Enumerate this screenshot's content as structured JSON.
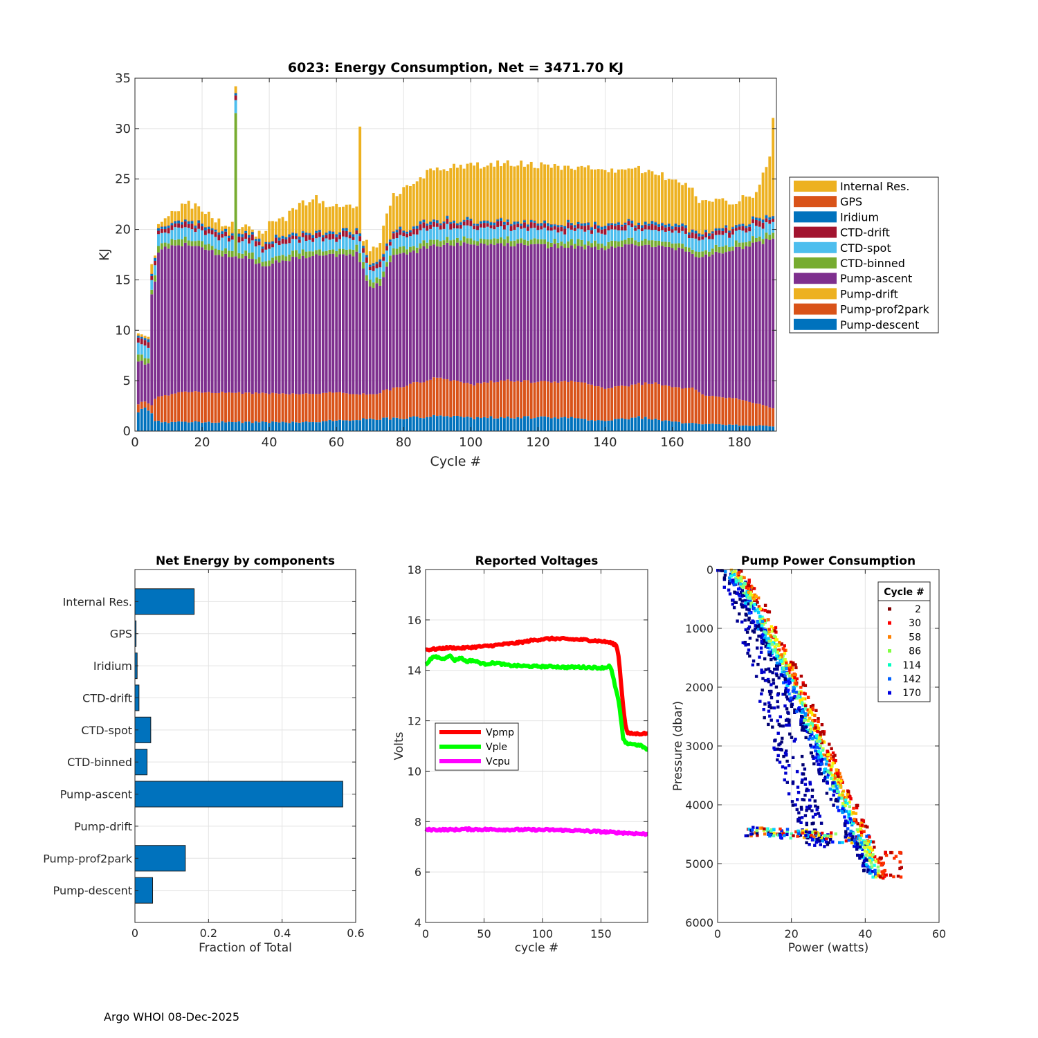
{
  "footer": "Argo WHOI 08-Dec-2025",
  "chart_data": [
    {
      "id": "energy",
      "type": "bar",
      "stacked": true,
      "title": "6023: Energy Consumption,  Net = 3471.70 KJ",
      "xlabel": "Cycle #",
      "ylabel": "KJ",
      "xlim": [
        0,
        191
      ],
      "ylim": [
        0,
        35
      ],
      "xticks": [
        0,
        20,
        40,
        60,
        80,
        100,
        120,
        140,
        160,
        180
      ],
      "yticks": [
        0,
        5,
        10,
        15,
        20,
        25,
        30,
        35
      ],
      "grid": true,
      "legend_position": "outside-right",
      "cycles": 190,
      "components": [
        {
          "name": "Pump-descent",
          "color": "#0072BD"
        },
        {
          "name": "Pump-prof2park",
          "color": "#D95319"
        },
        {
          "name": "Pump-drift",
          "color": "#EDB120"
        },
        {
          "name": "Pump-ascent",
          "color": "#7E2F8E"
        },
        {
          "name": "CTD-binned",
          "color": "#77AC30"
        },
        {
          "name": "CTD-spot",
          "color": "#4DBEEE"
        },
        {
          "name": "CTD-drift",
          "color": "#A2142F"
        },
        {
          "name": "Iridium",
          "color": "#0072BD"
        },
        {
          "name": "GPS",
          "color": "#D95319"
        },
        {
          "name": "Internal Res.",
          "color": "#EDB120"
        }
      ],
      "legend_order": [
        "Internal Res.",
        "GPS",
        "Iridium",
        "CTD-drift",
        "CTD-spot",
        "CTD-binned",
        "Pump-ascent",
        "Pump-drift",
        "Pump-prof2park",
        "Pump-descent"
      ],
      "total_anchors": [
        [
          1,
          9.0
        ],
        [
          2,
          9.2
        ],
        [
          3,
          8.8
        ],
        [
          4,
          8.5
        ],
        [
          5,
          16.3
        ],
        [
          6,
          16.8
        ],
        [
          7,
          20.5
        ],
        [
          10,
          21.5
        ],
        [
          13,
          22.2
        ],
        [
          16,
          22.6
        ],
        [
          20,
          22.0
        ],
        [
          24,
          21.0
        ],
        [
          26,
          20.5
        ],
        [
          29,
          20.6
        ],
        [
          31,
          20.4
        ],
        [
          34,
          20.2
        ],
        [
          36,
          19.5
        ],
        [
          38,
          19.8
        ],
        [
          40,
          20.6
        ],
        [
          45,
          21.2
        ],
        [
          50,
          22.5
        ],
        [
          53,
          23.3
        ],
        [
          56,
          22.6
        ],
        [
          60,
          22.4
        ],
        [
          63,
          22.2
        ],
        [
          66,
          22.5
        ],
        [
          68,
          19.0
        ],
        [
          70,
          18.2
        ],
        [
          73,
          18.8
        ],
        [
          75,
          21.5
        ],
        [
          77,
          23.5
        ],
        [
          80,
          23.8
        ],
        [
          85,
          25.2
        ],
        [
          90,
          26.0
        ],
        [
          95,
          26.2
        ],
        [
          100,
          26.3
        ],
        [
          105,
          26.5
        ],
        [
          110,
          26.7
        ],
        [
          115,
          26.5
        ],
        [
          120,
          26.3
        ],
        [
          125,
          26.4
        ],
        [
          130,
          25.8
        ],
        [
          135,
          26.0
        ],
        [
          140,
          25.8
        ],
        [
          145,
          25.9
        ],
        [
          150,
          26.0
        ],
        [
          155,
          25.6
        ],
        [
          160,
          25.0
        ],
        [
          165,
          24.5
        ],
        [
          168,
          23.0
        ],
        [
          170,
          22.8
        ],
        [
          175,
          22.8
        ],
        [
          180,
          22.9
        ],
        [
          184,
          23.5
        ],
        [
          186,
          24.5
        ],
        [
          188,
          26.0
        ],
        [
          189,
          27.5
        ],
        [
          190,
          31.2
        ]
      ],
      "ascent_top_anchors": [
        [
          1,
          7.0
        ],
        [
          4,
          6.6
        ],
        [
          5,
          13.6
        ],
        [
          6,
          14.6
        ],
        [
          7,
          17.8
        ],
        [
          10,
          18.2
        ],
        [
          15,
          18.5
        ],
        [
          20,
          18.2
        ],
        [
          25,
          17.5
        ],
        [
          30,
          17.3
        ],
        [
          35,
          17.0
        ],
        [
          38,
          16.2
        ],
        [
          42,
          16.8
        ],
        [
          48,
          17.2
        ],
        [
          55,
          17.6
        ],
        [
          60,
          17.3
        ],
        [
          66,
          17.6
        ],
        [
          68,
          16.0
        ],
        [
          70,
          14.3
        ],
        [
          73,
          14.6
        ],
        [
          75,
          16.4
        ],
        [
          77,
          17.3
        ],
        [
          80,
          17.5
        ],
        [
          90,
          18.5
        ],
        [
          100,
          18.5
        ],
        [
          110,
          18.6
        ],
        [
          120,
          18.4
        ],
        [
          130,
          18.3
        ],
        [
          140,
          18.2
        ],
        [
          150,
          18.4
        ],
        [
          160,
          18.2
        ],
        [
          165,
          18.0
        ],
        [
          168,
          17.3
        ],
        [
          170,
          17.5
        ],
        [
          180,
          18.2
        ],
        [
          190,
          19.0
        ]
      ],
      "descent_anchors": [
        [
          1,
          1.8
        ],
        [
          3,
          2.3
        ],
        [
          5,
          1.8
        ],
        [
          6,
          1.0
        ],
        [
          10,
          0.9
        ],
        [
          30,
          0.9
        ],
        [
          50,
          0.9
        ],
        [
          70,
          1.2
        ],
        [
          80,
          1.3
        ],
        [
          90,
          1.5
        ],
        [
          100,
          1.3
        ],
        [
          110,
          1.4
        ],
        [
          130,
          1.3
        ],
        [
          140,
          1.0
        ],
        [
          150,
          1.4
        ],
        [
          160,
          0.9
        ],
        [
          170,
          0.7
        ],
        [
          180,
          0.6
        ],
        [
          190,
          0.5
        ]
      ],
      "prof2park_anchors": [
        [
          1,
          0.8
        ],
        [
          3,
          0.6
        ],
        [
          5,
          0.8
        ],
        [
          6,
          2.2
        ],
        [
          8,
          2.6
        ],
        [
          15,
          3.0
        ],
        [
          30,
          2.9
        ],
        [
          50,
          2.8
        ],
        [
          60,
          2.8
        ],
        [
          70,
          2.4
        ],
        [
          75,
          2.8
        ],
        [
          80,
          3.2
        ],
        [
          90,
          3.8
        ],
        [
          100,
          3.3
        ],
        [
          110,
          3.7
        ],
        [
          120,
          3.5
        ],
        [
          130,
          3.6
        ],
        [
          135,
          3.6
        ],
        [
          140,
          3.2
        ],
        [
          150,
          3.3
        ],
        [
          155,
          3.6
        ],
        [
          160,
          3.4
        ],
        [
          166,
          3.5
        ],
        [
          170,
          2.8
        ],
        [
          180,
          2.6
        ],
        [
          190,
          1.8
        ]
      ],
      "spikes": [
        {
          "cycle": 30,
          "total": 34.2,
          "binned": 14.2
        },
        {
          "cycle": 67,
          "total": 30.2,
          "binned": 0.9
        }
      ],
      "labels": [
        "Internal Res.",
        "GPS",
        "Iridium",
        "CTD-drift",
        "CTD-spot",
        "CTD-binned",
        "Pump-ascent",
        "Pump-drift",
        "Pump-prof2park",
        "Pump-descent"
      ]
    },
    {
      "id": "fractions",
      "type": "bar",
      "orientation": "horizontal",
      "title": "Net Energy by components",
      "xlabel": "Fraction of Total",
      "ylabel": "",
      "xlim": [
        0,
        0.6
      ],
      "xticks": [
        0,
        0.2,
        0.4,
        0.6
      ],
      "xtick_labels": [
        "0",
        "0.2",
        "0.4",
        "0.6"
      ],
      "grid": true,
      "color": "#0072BD",
      "categories": [
        "Internal Res.",
        "GPS",
        "Iridium",
        "CTD-drift",
        "CTD-spot",
        "CTD-binned",
        "Pump-ascent",
        "Pump-drift",
        "Pump-prof2park",
        "Pump-descent"
      ],
      "values": [
        0.161,
        0.003,
        0.006,
        0.011,
        0.043,
        0.033,
        0.565,
        0.0,
        0.137,
        0.048
      ]
    },
    {
      "id": "voltages",
      "type": "line",
      "title": "Reported Voltages",
      "xlabel": "cycle #",
      "ylabel": "Volts",
      "xlim": [
        0,
        190
      ],
      "ylim": [
        4,
        18
      ],
      "xticks": [
        0,
        50,
        100,
        150
      ],
      "yticks": [
        4,
        6,
        8,
        10,
        12,
        14,
        16,
        18
      ],
      "grid": true,
      "legend_position": "middle-left",
      "series": [
        {
          "name": "Vpmp",
          "color": "#FF0000",
          "points": [
            [
              0,
              14.82
            ],
            [
              10,
              14.85
            ],
            [
              20,
              14.9
            ],
            [
              30,
              14.88
            ],
            [
              40,
              14.92
            ],
            [
              50,
              14.95
            ],
            [
              60,
              15.0
            ],
            [
              70,
              15.05
            ],
            [
              80,
              15.1
            ],
            [
              90,
              15.18
            ],
            [
              100,
              15.24
            ],
            [
              110,
              15.26
            ],
            [
              120,
              15.24
            ],
            [
              130,
              15.22
            ],
            [
              140,
              15.2
            ],
            [
              150,
              15.16
            ],
            [
              158,
              15.1
            ],
            [
              163,
              15.0
            ],
            [
              165,
              14.6
            ],
            [
              167,
              13.6
            ],
            [
              169,
              12.6
            ],
            [
              171,
              11.8
            ],
            [
              173,
              11.5
            ],
            [
              180,
              11.48
            ],
            [
              190,
              11.5
            ]
          ]
        },
        {
          "name": "Vple",
          "color": "#00FF00",
          "points": [
            [
              0,
              14.2
            ],
            [
              3,
              14.4
            ],
            [
              8,
              14.55
            ],
            [
              15,
              14.45
            ],
            [
              20,
              14.6
            ],
            [
              25,
              14.4
            ],
            [
              30,
              14.5
            ],
            [
              35,
              14.35
            ],
            [
              40,
              14.4
            ],
            [
              50,
              14.25
            ],
            [
              60,
              14.3
            ],
            [
              70,
              14.2
            ],
            [
              80,
              14.18
            ],
            [
              90,
              14.16
            ],
            [
              100,
              14.15
            ],
            [
              110,
              14.15
            ],
            [
              120,
              14.12
            ],
            [
              130,
              14.13
            ],
            [
              140,
              14.12
            ],
            [
              150,
              14.1
            ],
            [
              155,
              14.12
            ],
            [
              157,
              14.2
            ],
            [
              159,
              14.0
            ],
            [
              161,
              13.6
            ],
            [
              163,
              13.2
            ],
            [
              165,
              12.8
            ],
            [
              167,
              12.1
            ],
            [
              169,
              11.3
            ],
            [
              171,
              11.1
            ],
            [
              175,
              11.1
            ],
            [
              180,
              11.05
            ],
            [
              185,
              11.0
            ],
            [
              188,
              10.9
            ],
            [
              190,
              10.85
            ]
          ]
        },
        {
          "name": "Vcpu",
          "color": "#FF00FF",
          "points": [
            [
              0,
              7.68
            ],
            [
              27,
              7.68
            ],
            [
              30,
              7.7
            ],
            [
              50,
              7.69
            ],
            [
              80,
              7.68
            ],
            [
              110,
              7.67
            ],
            [
              130,
              7.64
            ],
            [
              150,
              7.6
            ],
            [
              170,
              7.55
            ],
            [
              180,
              7.53
            ],
            [
              190,
              7.5
            ]
          ]
        }
      ]
    },
    {
      "id": "pump_power",
      "type": "scatter",
      "title": "Pump Power Consumption",
      "xlabel": "Power (watts)",
      "ylabel": "Pressure (dbar)",
      "xlim": [
        0,
        60
      ],
      "ylim": [
        0,
        6000
      ],
      "y_reversed": true,
      "xticks": [
        0,
        20,
        40,
        60
      ],
      "yticks": [
        0,
        1000,
        2000,
        3000,
        4000,
        5000,
        6000
      ],
      "grid": true,
      "legend_title": "Cycle #",
      "legend_position": "top-right",
      "series": [
        {
          "name": "2",
          "color": "#800000"
        },
        {
          "name": "30",
          "color": "#FF0000"
        },
        {
          "name": "58",
          "color": "#FF8000"
        },
        {
          "name": "86",
          "color": "#80FF40"
        },
        {
          "name": "114",
          "color": "#00FFC0"
        },
        {
          "name": "142",
          "color": "#0060FF"
        },
        {
          "name": "170",
          "color": "#0000E0"
        }
      ],
      "cloud_colors": [
        "#000070",
        "#00008F",
        "#0000CF",
        "#0010FF",
        "#0050FF",
        "#0090FF",
        "#00D0FF",
        "#10FFEF",
        "#50FFAF",
        "#90FF6F",
        "#D0FF2F",
        "#FFEF00",
        "#FFB000",
        "#FF7000",
        "#FF3000",
        "#EF0000",
        "#B00000"
      ],
      "main_band": [
        [
          3,
          0
        ],
        [
          7,
          300
        ],
        [
          13,
          1000
        ],
        [
          20,
          1900
        ],
        [
          26,
          2800
        ],
        [
          33,
          3800
        ],
        [
          41,
          4900
        ],
        [
          44,
          5300
        ]
      ],
      "low_band": [
        [
          3,
          0
        ],
        [
          6,
          400
        ],
        [
          10,
          1200
        ],
        [
          16,
          2500
        ],
        [
          21,
          3500
        ],
        [
          25,
          4300
        ],
        [
          28,
          4700
        ]
      ],
      "branch": [
        [
          8,
          4450
        ],
        [
          15,
          4480
        ],
        [
          22,
          4500
        ],
        [
          30,
          4550
        ],
        [
          40,
          4600
        ]
      ]
    }
  ]
}
